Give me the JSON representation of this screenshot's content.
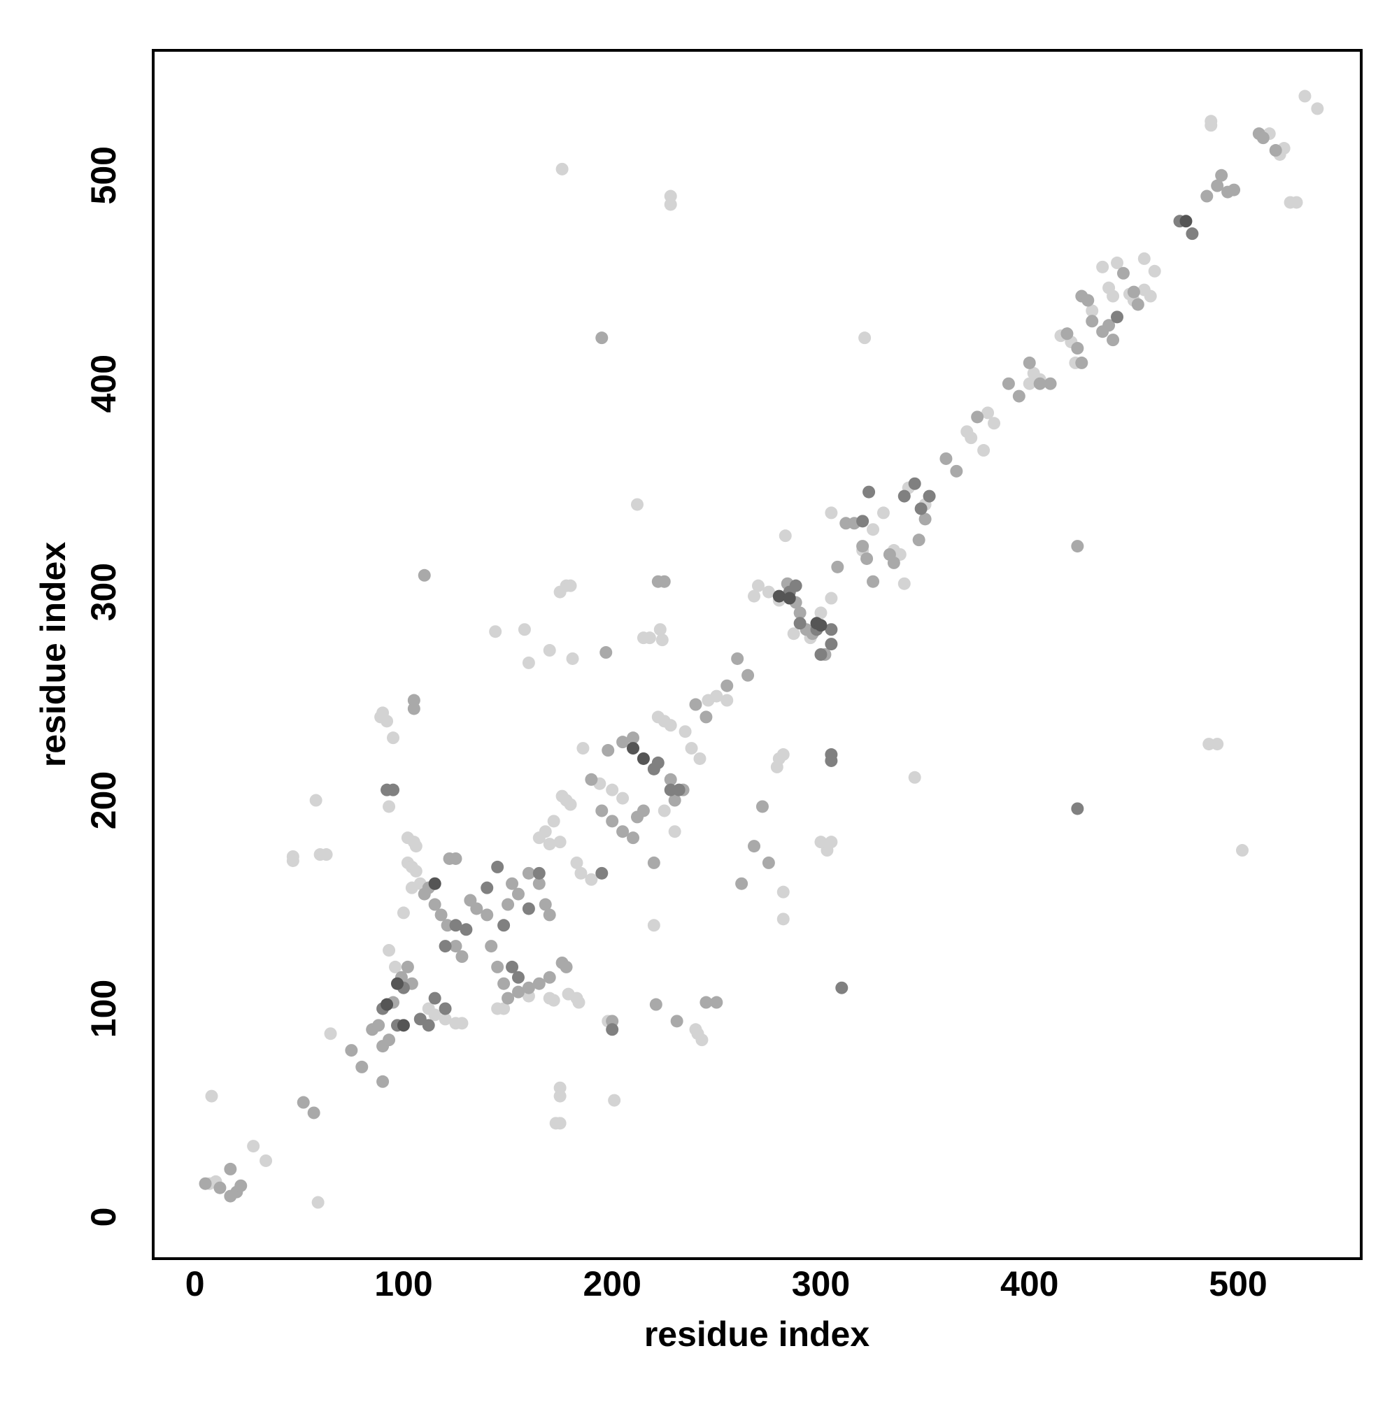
{
  "chart_data": {
    "type": "scatter",
    "xlabel": "residue index",
    "ylabel": "residue index",
    "xlim": [
      -20,
      559
    ],
    "ylim": [
      -20,
      560
    ],
    "xticks": [
      0,
      100,
      200,
      300,
      400,
      500
    ],
    "yticks": [
      0,
      100,
      200,
      300,
      400,
      500
    ],
    "series": [
      {
        "color": "#d3d3d3",
        "x": [
          8,
          10,
          7,
          28,
          34,
          58,
          59,
          60,
          63,
          47,
          47,
          65,
          90,
          89,
          92,
          95,
          93,
          93,
          102,
          105,
          106,
          102,
          104,
          100,
          104,
          108,
          106,
          96,
          112,
          115,
          120,
          125,
          128,
          145,
          148,
          160,
          170,
          172,
          173,
          175,
          175,
          175,
          179,
          183,
          184,
          176,
          178,
          180,
          172,
          168,
          165,
          175,
          170,
          183,
          185,
          190,
          194,
          200,
          205,
          198,
          201,
          144,
          158,
          160,
          170,
          175,
          178,
          180,
          181,
          186,
          212,
          215,
          218,
          223,
          224,
          222,
          225,
          228,
          235,
          238,
          242,
          228,
          228,
          176,
          240,
          241,
          243,
          246,
          250,
          255,
          268,
          270,
          275,
          280,
          280,
          279,
          282,
          283,
          282,
          282,
          287,
          295,
          300,
          305,
          305,
          303,
          305,
          300,
          321,
          320,
          325,
          330,
          335,
          338,
          340,
          342,
          345,
          350,
          370,
          372,
          378,
          380,
          383,
          400,
          402,
          405,
          415,
          420,
          422,
          430,
          435,
          438,
          440,
          442,
          448,
          450,
          455,
          458,
          460,
          455,
          487,
          487,
          502,
          486,
          490,
          515,
          520,
          522,
          525,
          528,
          532,
          538,
          220,
          230,
          225
        ],
        "values": [
          58,
          17,
          16,
          34,
          27,
          200,
          7,
          174,
          174,
          173,
          171,
          88,
          242,
          240,
          238,
          230,
          197,
          128,
          182,
          180,
          178,
          170,
          168,
          146,
          158,
          160,
          166,
          120,
          100,
          97,
          95,
          93,
          93,
          100,
          100,
          106,
          105,
          104,
          45,
          45,
          62,
          58,
          107,
          105,
          103,
          202,
          200,
          198,
          190,
          185,
          182,
          180,
          179,
          170,
          165,
          162,
          208,
          205,
          201,
          94,
          56,
          281,
          282,
          266,
          272,
          300,
          303,
          303,
          268,
          225,
          342,
          278,
          278,
          282,
          277,
          240,
          238,
          236,
          233,
          225,
          220,
          490,
          486,
          503,
          90,
          88,
          85,
          248,
          250,
          248,
          298,
          303,
          300,
          296,
          220,
          216,
          222,
          327,
          143,
          156,
          280,
          278,
          290,
          297,
          338,
          176,
          180,
          180,
          422,
          320,
          330,
          338,
          320,
          318,
          304,
          350,
          211,
          342,
          377,
          374,
          368,
          386,
          381,
          400,
          405,
          402,
          423,
          420,
          410,
          435,
          456,
          446,
          442,
          458,
          443,
          440,
          445,
          442,
          454,
          460,
          524,
          526,
          176,
          227,
          227,
          520,
          510,
          513,
          487,
          487,
          538,
          532,
          140,
          185,
          195
        ]
      },
      {
        "color": "#a9a9a9",
        "x": [
          17,
          17,
          20,
          22,
          5,
          12,
          52,
          57,
          75,
          80,
          85,
          88,
          90,
          90,
          93,
          95,
          99,
          102,
          104,
          105,
          105,
          110,
          112,
          115,
          115,
          118,
          121,
          122,
          125,
          125,
          128,
          132,
          135,
          140,
          142,
          145,
          148,
          150,
          152,
          155,
          160,
          165,
          168,
          170,
          150,
          155,
          160,
          165,
          170,
          176,
          178,
          190,
          195,
          200,
          205,
          210,
          198,
          205,
          210,
          212,
          215,
          220,
          222,
          225,
          228,
          230,
          234,
          240,
          245,
          255,
          260,
          265,
          272,
          275,
          268,
          262,
          284,
          288,
          290,
          293,
          296,
          302,
          308,
          312,
          316,
          320,
          322,
          325,
          333,
          335,
          347,
          350,
          360,
          365,
          375,
          390,
          395,
          400,
          405,
          410,
          418,
          423,
          425,
          423,
          425,
          428,
          430,
          435,
          438,
          440,
          445,
          450,
          452,
          485,
          490,
          492,
          495,
          498,
          510,
          512,
          518,
          197,
          200,
          221,
          245,
          250,
          231,
          195,
          110
        ],
        "values": [
          23,
          10,
          12,
          15,
          16,
          14,
          55,
          50,
          80,
          72,
          90,
          92,
          65,
          82,
          85,
          103,
          115,
          120,
          112,
          248,
          244,
          155,
          158,
          160,
          150,
          145,
          140,
          172,
          172,
          130,
          125,
          152,
          148,
          145,
          130,
          120,
          112,
          150,
          160,
          155,
          165,
          160,
          150,
          145,
          105,
          108,
          110,
          112,
          115,
          122,
          120,
          210,
          195,
          190,
          185,
          182,
          224,
          228,
          230,
          192,
          195,
          170,
          305,
          305,
          210,
          200,
          205,
          246,
          240,
          255,
          268,
          260,
          197,
          170,
          178,
          160,
          304,
          295,
          290,
          282,
          280,
          270,
          312,
          333,
          333,
          322,
          316,
          305,
          318,
          314,
          325,
          335,
          364,
          358,
          384,
          400,
          394,
          410,
          400,
          400,
          424,
          417,
          410,
          322,
          442,
          440,
          430,
          425,
          428,
          421,
          453,
          444,
          438,
          490,
          495,
          500,
          492,
          493,
          520,
          518,
          512,
          271,
          94,
          102,
          103,
          103,
          94,
          422,
          308
        ]
      },
      {
        "color": "#808080",
        "x": [
          95,
          92,
          90,
          97,
          100,
          108,
          112,
          115,
          120,
          120,
          125,
          130,
          140,
          145,
          148,
          152,
          155,
          160,
          165,
          195,
          220,
          222,
          228,
          232,
          285,
          290,
          298,
          300,
          305,
          305,
          305,
          305,
          310,
          323,
          340,
          345,
          348,
          352,
          423,
          442,
          472,
          478,
          200,
          320,
          288
        ],
        "values": [
          205,
          205,
          100,
          92,
          110,
          95,
          92,
          105,
          100,
          130,
          140,
          138,
          158,
          168,
          140,
          120,
          115,
          148,
          165,
          165,
          215,
          218,
          205,
          205,
          300,
          285,
          282,
          270,
          275,
          282,
          222,
          219,
          110,
          348,
          346,
          352,
          340,
          346,
          196,
          432,
          478,
          472,
          90,
          334,
          303
        ]
      },
      {
        "color": "#555555",
        "x": [
          92,
          100,
          115,
          210,
          215,
          280,
          285,
          298,
          300,
          97,
          475
        ],
        "values": [
          102,
          92,
          160,
          225,
          220,
          298,
          297,
          285,
          284,
          112,
          478
        ]
      }
    ]
  }
}
